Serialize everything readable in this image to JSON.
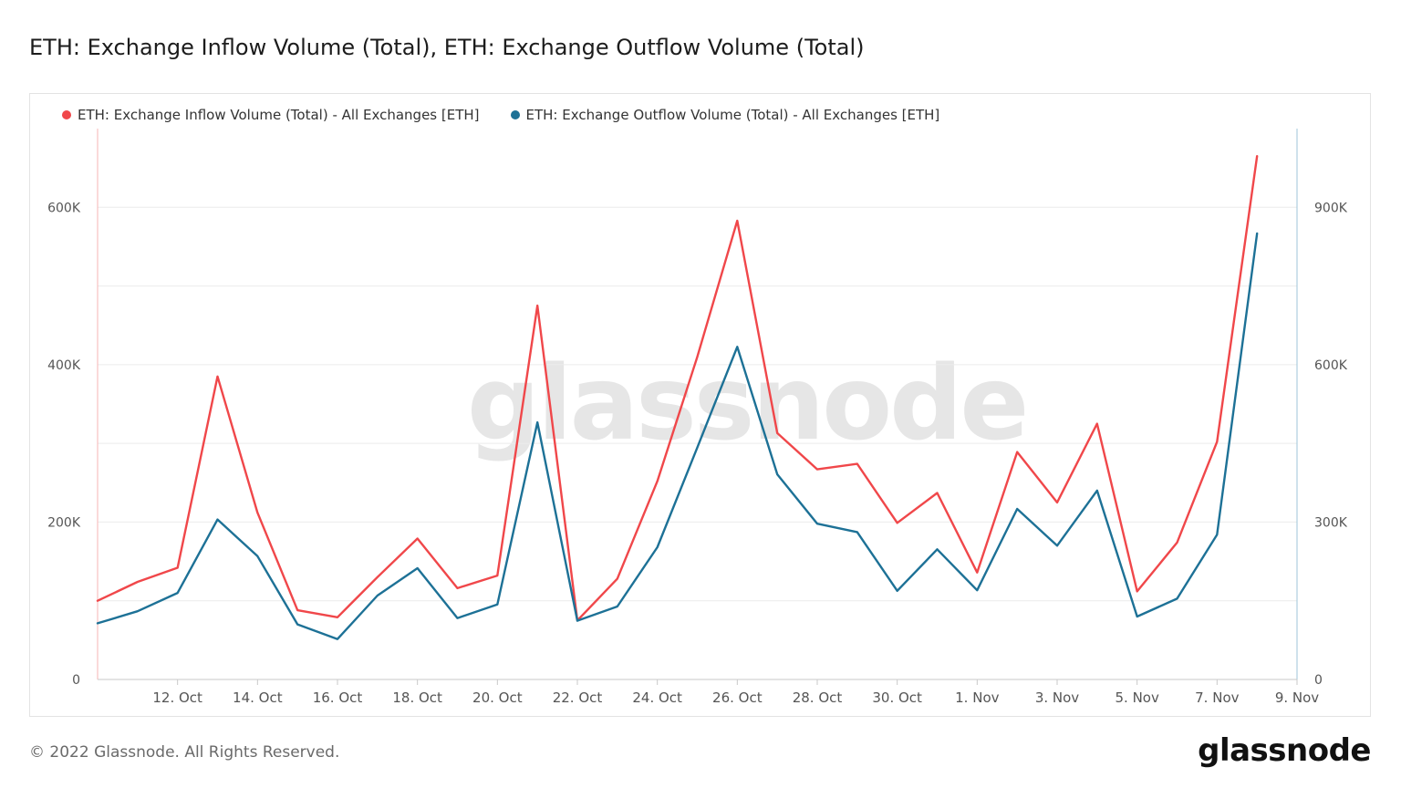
{
  "page": {
    "title": "ETH: Exchange Inflow Volume (Total), ETH: Exchange Outflow Volume (Total)",
    "copyright": "© 2022 Glassnode. All Rights Reserved.",
    "logo_text": "glassnode",
    "watermark": "glassnode"
  },
  "colors": {
    "inflow": "#f0474a",
    "outflow": "#1d7196",
    "grid": "#ececec",
    "tick_text": "#555555"
  },
  "chart_data": {
    "type": "line",
    "title": "ETH: Exchange Inflow Volume (Total), ETH: Exchange Outflow Volume (Total)",
    "x": [
      "2022-10-10",
      "2022-10-11",
      "2022-10-12",
      "2022-10-13",
      "2022-10-14",
      "2022-10-15",
      "2022-10-16",
      "2022-10-17",
      "2022-10-18",
      "2022-10-19",
      "2022-10-20",
      "2022-10-21",
      "2022-10-22",
      "2022-10-23",
      "2022-10-24",
      "2022-10-25",
      "2022-10-26",
      "2022-10-27",
      "2022-10-28",
      "2022-10-29",
      "2022-10-30",
      "2022-10-31",
      "2022-11-01",
      "2022-11-02",
      "2022-11-03",
      "2022-11-04",
      "2022-11-05",
      "2022-11-06",
      "2022-11-07",
      "2022-11-08"
    ],
    "x_ticks": [
      "12. Oct",
      "14. Oct",
      "16. Oct",
      "18. Oct",
      "20. Oct",
      "22. Oct",
      "24. Oct",
      "26. Oct",
      "28. Oct",
      "30. Oct",
      "1. Nov",
      "3. Nov",
      "5. Nov",
      "7. Nov",
      "9. Nov"
    ],
    "x_tick_dates": [
      "2022-10-12",
      "2022-10-14",
      "2022-10-16",
      "2022-10-18",
      "2022-10-20",
      "2022-10-22",
      "2022-10-24",
      "2022-10-26",
      "2022-10-28",
      "2022-10-30",
      "2022-11-01",
      "2022-11-03",
      "2022-11-05",
      "2022-11-07",
      "2022-11-09"
    ],
    "xlim": [
      "2022-10-10",
      "2022-11-09"
    ],
    "y_left": {
      "ylim": [
        0,
        700000
      ],
      "ticks": [
        0,
        200000,
        400000,
        600000
      ],
      "tick_labels": [
        "0",
        "200K",
        "400K",
        "600K"
      ]
    },
    "y_right": {
      "ylim": [
        0,
        1050000
      ],
      "ticks": [
        0,
        300000,
        600000,
        900000
      ],
      "tick_labels": [
        "0",
        "300K",
        "600K",
        "900K"
      ]
    },
    "grid": true,
    "legend_position": "top-left",
    "series": [
      {
        "name": "ETH: Exchange Inflow Volume (Total) - All Exchanges [ETH]",
        "axis": "left",
        "values": [
          100000,
          124000,
          142000,
          385000,
          212000,
          88000,
          79000,
          130000,
          179000,
          116000,
          132000,
          475000,
          75000,
          128000,
          252000,
          410000,
          583000,
          313000,
          267000,
          274000,
          199000,
          237000,
          136000,
          289000,
          225000,
          325000,
          112000,
          174000,
          302000,
          665000
        ]
      },
      {
        "name": "ETH: Exchange Outflow Volume (Total) - All Exchanges [ETH]",
        "axis": "right",
        "values": [
          107000,
          130000,
          165000,
          305000,
          235000,
          105000,
          77000,
          160000,
          212000,
          117000,
          143000,
          490000,
          112000,
          139000,
          252000,
          442000,
          634000,
          391000,
          297000,
          281000,
          169000,
          248000,
          170000,
          325000,
          255000,
          360000,
          120000,
          154000,
          276000,
          850000
        ]
      }
    ]
  }
}
